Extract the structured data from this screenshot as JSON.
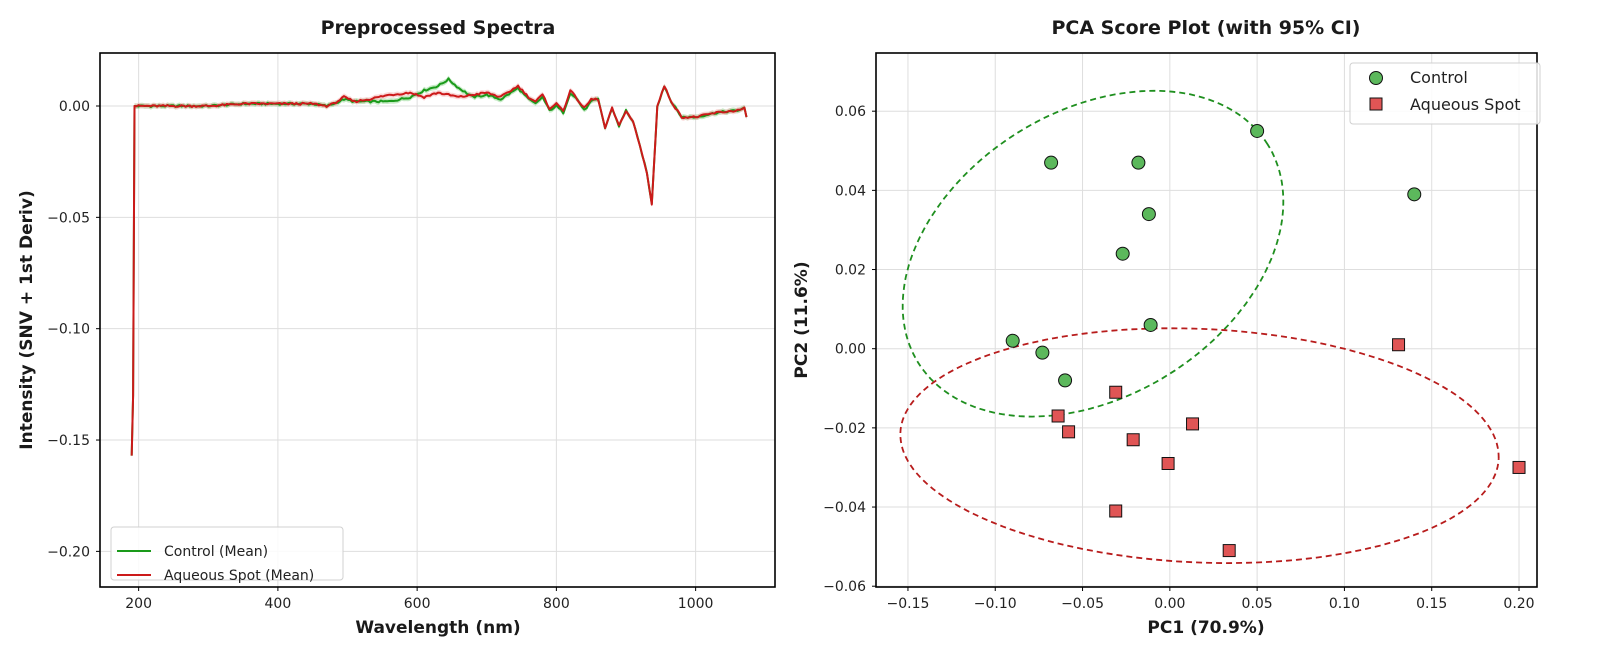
{
  "chart_data": [
    {
      "type": "line",
      "title": "Preprocessed Spectra",
      "xlabel": "Wavelength (nm)",
      "ylabel": "Intensity (SNV + 1st Deriv)",
      "xlim": [
        144.5,
        1114
      ],
      "ylim": [
        -0.216,
        0.0238
      ],
      "xticks": [
        200,
        400,
        600,
        800,
        1000
      ],
      "xtick_labels": [
        "200",
        "400",
        "600",
        "800",
        "1000"
      ],
      "yticks": [
        0.0,
        -0.05,
        -0.1,
        -0.15,
        -0.2
      ],
      "ytick_labels": [
        "0.00",
        "−0.05",
        "−0.10",
        "−0.15",
        "−0.20"
      ],
      "grid": true,
      "legend_position": "lower-left",
      "series": [
        {
          "name": "Control (Mean)",
          "color": "#1a9a1a",
          "band_color": "#7fd07f",
          "x": [
            190,
            192,
            194,
            200,
            250,
            300,
            350,
            400,
            450,
            470,
            480,
            495,
            510,
            530,
            560,
            590,
            610,
            630,
            645,
            660,
            680,
            700,
            720,
            735,
            745,
            760,
            770,
            780,
            790,
            800,
            810,
            820,
            830,
            840,
            850,
            860,
            870,
            880,
            890,
            900,
            910,
            920,
            930,
            937,
            945,
            955,
            965,
            980,
            1000,
            1030,
            1060,
            1070,
            1073
          ],
          "y": [
            -0.157,
            -0.13,
            0.0,
            0.0,
            0.0,
            0.0,
            0.001,
            0.001,
            0.001,
            0.0,
            0.001,
            0.003,
            0.002,
            0.002,
            0.002,
            0.004,
            0.007,
            0.009,
            0.012,
            0.008,
            0.004,
            0.005,
            0.003,
            0.006,
            0.008,
            0.003,
            0.001,
            0.004,
            -0.002,
            0.0,
            -0.003,
            0.006,
            0.003,
            -0.002,
            0.002,
            0.003,
            -0.01,
            -0.001,
            -0.009,
            -0.002,
            -0.007,
            -0.018,
            -0.03,
            -0.044,
            0.0,
            0.009,
            0.002,
            -0.005,
            -0.005,
            -0.003,
            -0.002,
            -0.001,
            -0.005
          ]
        },
        {
          "name": "Aqueous Spot (Mean)",
          "color": "#cc1a1a",
          "band_color": "#f2a8a8",
          "x": [
            190,
            192,
            194,
            200,
            250,
            300,
            350,
            400,
            450,
            470,
            480,
            495,
            510,
            530,
            560,
            590,
            610,
            630,
            645,
            660,
            680,
            700,
            720,
            735,
            745,
            760,
            770,
            780,
            790,
            800,
            810,
            820,
            830,
            840,
            850,
            860,
            870,
            880,
            890,
            900,
            910,
            920,
            930,
            937,
            945,
            955,
            965,
            980,
            1000,
            1030,
            1060,
            1070,
            1073
          ],
          "y": [
            -0.157,
            -0.13,
            0.0,
            0.0,
            0.0,
            0.0,
            0.001,
            0.001,
            0.001,
            0.0,
            0.001,
            0.004,
            0.002,
            0.003,
            0.005,
            0.006,
            0.004,
            0.006,
            0.005,
            0.004,
            0.005,
            0.006,
            0.004,
            0.007,
            0.009,
            0.004,
            0.002,
            0.005,
            -0.001,
            0.001,
            -0.002,
            0.007,
            0.003,
            -0.001,
            0.003,
            0.003,
            -0.01,
            -0.001,
            -0.009,
            -0.002,
            -0.007,
            -0.018,
            -0.03,
            -0.044,
            0.0,
            0.009,
            0.002,
            -0.005,
            -0.005,
            -0.003,
            -0.002,
            -0.001,
            -0.005
          ]
        }
      ]
    },
    {
      "type": "scatter",
      "title": "PCA Score Plot (with 95% CI)",
      "xlabel": "PC1 (70.9%)",
      "ylabel": "PC2 (11.6%)",
      "xlim": [
        -0.1683,
        0.2103
      ],
      "ylim": [
        -0.0602,
        0.0747
      ],
      "xticks": [
        -0.15,
        -0.1,
        -0.05,
        0.0,
        0.05,
        0.1,
        0.15,
        0.2
      ],
      "xtick_labels": [
        "−0.15",
        "−0.10",
        "−0.05",
        "0.00",
        "0.05",
        "0.10",
        "0.15",
        "0.20"
      ],
      "yticks": [
        0.06,
        0.04,
        0.02,
        0.0,
        -0.02,
        -0.04,
        -0.06
      ],
      "ytick_labels": [
        "0.06",
        "0.04",
        "0.02",
        "0.00",
        "−0.02",
        "−0.04",
        "−0.06"
      ],
      "grid": true,
      "legend_position": "top-right",
      "series": [
        {
          "name": "Control",
          "marker": "circle",
          "color": "#5cb85c",
          "points": [
            [
              -0.068,
              0.047
            ],
            [
              -0.018,
              0.047
            ],
            [
              0.05,
              0.055
            ],
            [
              -0.012,
              0.034
            ],
            [
              -0.027,
              0.024
            ],
            [
              0.14,
              0.039
            ],
            [
              -0.09,
              0.002
            ],
            [
              -0.073,
              -0.001
            ],
            [
              -0.06,
              -0.008
            ],
            [
              -0.011,
              0.006
            ]
          ],
          "ellipse": {
            "center": [
              -0.044,
              0.024
            ],
            "semi_axes": [
              0.118,
              0.036
            ],
            "angle_deg": 32,
            "color": "#1f8f1f"
          }
        },
        {
          "name": "Aqueous Spot",
          "marker": "square",
          "color": "#e05555",
          "points": [
            [
              -0.064,
              -0.017
            ],
            [
              -0.058,
              -0.021
            ],
            [
              -0.031,
              -0.011
            ],
            [
              -0.021,
              -0.023
            ],
            [
              0.013,
              -0.019
            ],
            [
              -0.001,
              -0.029
            ],
            [
              -0.031,
              -0.041
            ],
            [
              0.034,
              -0.051
            ],
            [
              0.131,
              0.001
            ],
            [
              0.2,
              -0.03
            ]
          ],
          "ellipse": {
            "center": [
              0.017,
              -0.0245
            ],
            "semi_axes": [
              0.1715,
              0.0295
            ],
            "angle_deg": -2.5,
            "color": "#b81c1c"
          }
        }
      ]
    }
  ]
}
